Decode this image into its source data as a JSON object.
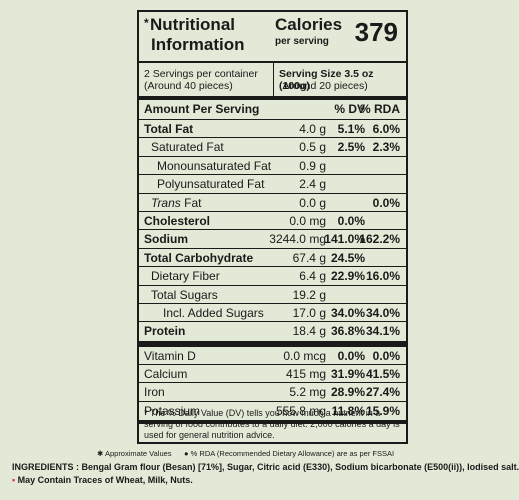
{
  "header": {
    "star": "*",
    "title_line1": "Nutritional",
    "title_line2": "Information",
    "calories_word": "Calories",
    "per_serving": "per serving",
    "calories_value": "379"
  },
  "servings": {
    "left_line1": "2 Servings per container",
    "left_line2": "(Around 40 pieces)",
    "right_line1": "Serving Size 3.5 oz (100g)",
    "right_line2": "(Around 20 pieces)"
  },
  "columns": {
    "amount_per_serving": "Amount Per Serving",
    "dv": "% DV",
    "rda": "% RDA"
  },
  "rows": [
    {
      "label": "Total Fat",
      "amount": "4.0 g",
      "dv": "5.1%",
      "rda": "6.0%"
    },
    {
      "label": "Saturated Fat",
      "amount": "0.5 g",
      "dv": "2.5%",
      "rda": "2.3%"
    },
    {
      "label": "Monounsaturated Fat",
      "amount": "0.9 g",
      "dv": "",
      "rda": ""
    },
    {
      "label": "Polyunsaturated Fat",
      "amount": "2.4 g",
      "dv": "",
      "rda": ""
    },
    {
      "label": "Trans",
      "label_suffix": " Fat",
      "amount": "0.0 g",
      "dv": "",
      "rda": "0.0%"
    },
    {
      "label": "Cholesterol",
      "amount": "0.0 mg",
      "dv": "0.0%",
      "rda": ""
    },
    {
      "label": "Sodium",
      "amount": "3244.0 mg",
      "dv": "141.0%",
      "rda": "162.2%"
    },
    {
      "label": "Total Carbohydrate",
      "amount": "67.4 g",
      "dv": "24.5%",
      "rda": ""
    },
    {
      "label": "Dietary Fiber",
      "amount": "6.4 g",
      "dv": "22.9%",
      "rda": "16.0%"
    },
    {
      "label": "Total Sugars",
      "amount": "19.2 g",
      "dv": "",
      "rda": ""
    },
    {
      "label": "Incl. Added Sugars",
      "amount": "17.0 g",
      "dv": "34.0%",
      "rda": "34.0%"
    },
    {
      "label": "Protein",
      "amount": "18.4 g",
      "dv": "36.8%",
      "rda": "34.1%"
    },
    {
      "label": "Vitamin D",
      "amount": "0.0 mcg",
      "dv": "0.0%",
      "rda": "0.0%"
    },
    {
      "label": "Calcium",
      "amount": "415 mg",
      "dv": "31.9%",
      "rda": "41.5%"
    },
    {
      "label": "Iron",
      "amount": "5.2 mg",
      "dv": "28.9%",
      "rda": "27.4%"
    },
    {
      "label": "Potassium",
      "amount": "555.8 mg",
      "dv": "11.8%",
      "rda": "15.9%"
    }
  ],
  "footnote": "* The % Daily Value (DV) tells you how much a nutrient in a serving of food contributes to a daily diet. 2,000 calories a day is used for general nutrition advice.",
  "legend": {
    "approx": "Approximate Values",
    "rda_note": "% RDA (Recommended Dietary Allowance) are as per FSSAI"
  },
  "ingredients": "INGREDIENTS : Bengal Gram flour (Besan) [71%], Sugar, Citric acid (E330), Sodium bicarbonate (E500(ii)), Iodised salt.",
  "allergen": "May Contain Traces of Wheat, Milk, Nuts."
}
